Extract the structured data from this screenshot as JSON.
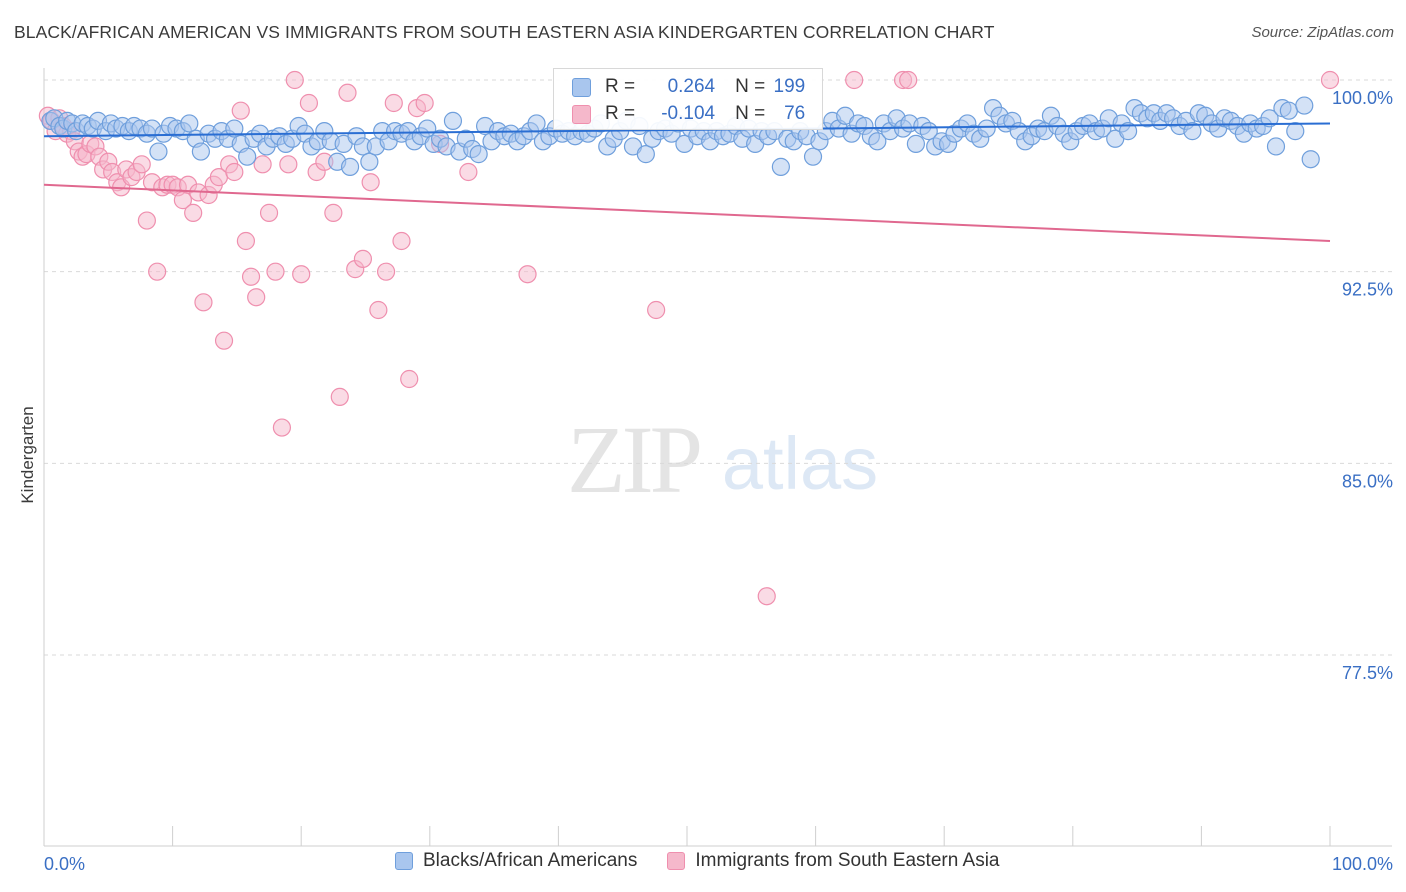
{
  "title": "BLACK/AFRICAN AMERICAN VS IMMIGRANTS FROM SOUTH EASTERN ASIA KINDERGARTEN CORRELATION CHART",
  "source": "Source: ZipAtlas.com",
  "watermark": {
    "zip": "ZIP",
    "atlas": "atlas"
  },
  "colors": {
    "blue_fill": "#a9c6ee",
    "blue_stroke": "#6f9fdc",
    "blue_line": "#2a6ed3",
    "pink_fill": "#f5b8cb",
    "pink_stroke": "#ef8fae",
    "pink_line": "#e0688f",
    "tick_label": "#3a6fc4",
    "grid": "#d9d9d9"
  },
  "stats": {
    "r_label": "R =",
    "n_label": "N =",
    "series1": {
      "r": "0.264",
      "n": "199"
    },
    "series2": {
      "r": "-0.104",
      "n": "76"
    }
  },
  "chart_data": {
    "type": "scatter",
    "title": "BLACK/AFRICAN AMERICAN VS IMMIGRANTS FROM SOUTH EASTERN ASIA KINDERGARTEN CORRELATION CHART",
    "xlabel": "",
    "ylabel": "Kindergarten",
    "xlim": [
      0,
      100
    ],
    "ylim": [
      70,
      101.5
    ],
    "x_tick_labels": [
      "0.0%",
      "100.0%"
    ],
    "y_ticks": [
      100,
      92.5,
      85,
      77.5
    ],
    "y_tick_labels": [
      "100.0%",
      "92.5%",
      "85.0%",
      "77.5%"
    ],
    "grid": true,
    "legend_position": "bottom",
    "series": [
      {
        "name": "Blacks/African Americans",
        "color": "#a9c6ee",
        "trend": {
          "x": [
            0,
            100
          ],
          "y": [
            97.8,
            98.3
          ]
        },
        "points": [
          [
            0.5,
            98.4
          ],
          [
            0.8,
            98.5
          ],
          [
            1.2,
            98.2
          ],
          [
            1.5,
            98.1
          ],
          [
            1.8,
            98.4
          ],
          [
            2.2,
            98.3
          ],
          [
            2.5,
            98.0
          ],
          [
            3.0,
            98.3
          ],
          [
            3.4,
            98.2
          ],
          [
            3.8,
            98.1
          ],
          [
            4.2,
            98.4
          ],
          [
            4.8,
            98.0
          ],
          [
            5.2,
            98.3
          ],
          [
            5.6,
            98.1
          ],
          [
            6.1,
            98.2
          ],
          [
            6.6,
            98.0
          ],
          [
            7.0,
            98.2
          ],
          [
            7.5,
            98.1
          ],
          [
            8.0,
            97.9
          ],
          [
            8.4,
            98.1
          ],
          [
            8.9,
            97.2
          ],
          [
            9.3,
            97.9
          ],
          [
            9.8,
            98.2
          ],
          [
            10.3,
            98.1
          ],
          [
            10.8,
            98.0
          ],
          [
            11.3,
            98.3
          ],
          [
            11.8,
            97.7
          ],
          [
            12.2,
            97.2
          ],
          [
            12.8,
            97.9
          ],
          [
            13.3,
            97.7
          ],
          [
            13.8,
            98.0
          ],
          [
            14.3,
            97.7
          ],
          [
            14.8,
            98.1
          ],
          [
            15.3,
            97.5
          ],
          [
            15.8,
            97.0
          ],
          [
            16.3,
            97.7
          ],
          [
            16.8,
            97.9
          ],
          [
            17.3,
            97.4
          ],
          [
            17.8,
            97.7
          ],
          [
            18.3,
            97.8
          ],
          [
            18.8,
            97.5
          ],
          [
            19.3,
            97.7
          ],
          [
            19.8,
            98.2
          ],
          [
            20.3,
            97.9
          ],
          [
            20.8,
            97.4
          ],
          [
            21.3,
            97.6
          ],
          [
            21.8,
            98.0
          ],
          [
            22.3,
            97.6
          ],
          [
            22.8,
            96.8
          ],
          [
            23.3,
            97.5
          ],
          [
            23.8,
            96.6
          ],
          [
            24.3,
            97.8
          ],
          [
            24.8,
            97.4
          ],
          [
            25.3,
            96.8
          ],
          [
            25.8,
            97.4
          ],
          [
            26.3,
            98.0
          ],
          [
            26.8,
            97.6
          ],
          [
            27.3,
            98.0
          ],
          [
            27.8,
            97.9
          ],
          [
            28.3,
            98.0
          ],
          [
            28.8,
            97.6
          ],
          [
            29.3,
            97.8
          ],
          [
            29.8,
            98.1
          ],
          [
            30.3,
            97.5
          ],
          [
            30.8,
            97.7
          ],
          [
            31.3,
            97.4
          ],
          [
            31.8,
            98.4
          ],
          [
            32.3,
            97.2
          ],
          [
            32.8,
            97.7
          ],
          [
            33.3,
            97.3
          ],
          [
            33.8,
            97.1
          ],
          [
            34.3,
            98.2
          ],
          [
            34.8,
            97.6
          ],
          [
            35.3,
            98.0
          ],
          [
            35.8,
            97.8
          ],
          [
            36.3,
            97.9
          ],
          [
            36.8,
            97.6
          ],
          [
            37.3,
            97.8
          ],
          [
            37.8,
            98.0
          ],
          [
            38.3,
            98.3
          ],
          [
            38.8,
            97.6
          ],
          [
            39.3,
            97.8
          ],
          [
            39.8,
            98.1
          ],
          [
            40.3,
            97.9
          ],
          [
            40.8,
            98.0
          ],
          [
            41.3,
            97.8
          ],
          [
            41.8,
            98.0
          ],
          [
            42.3,
            97.9
          ],
          [
            42.8,
            98.1
          ],
          [
            43.3,
            98.3
          ],
          [
            43.8,
            97.4
          ],
          [
            44.3,
            97.7
          ],
          [
            44.8,
            98.0
          ],
          [
            45.3,
            98.4
          ],
          [
            45.8,
            97.4
          ],
          [
            46.3,
            98.2
          ],
          [
            46.8,
            97.1
          ],
          [
            47.3,
            97.7
          ],
          [
            47.8,
            98.0
          ],
          [
            48.3,
            98.1
          ],
          [
            48.8,
            97.9
          ],
          [
            49.3,
            98.3
          ],
          [
            49.8,
            97.5
          ],
          [
            50.3,
            98.1
          ],
          [
            50.8,
            97.8
          ],
          [
            51.3,
            98.0
          ],
          [
            51.8,
            97.6
          ],
          [
            52.3,
            98.0
          ],
          [
            52.8,
            97.8
          ],
          [
            53.3,
            97.9
          ],
          [
            53.8,
            98.2
          ],
          [
            54.3,
            97.7
          ],
          [
            54.8,
            98.1
          ],
          [
            55.3,
            97.5
          ],
          [
            55.8,
            98.0
          ],
          [
            56.3,
            97.8
          ],
          [
            56.8,
            98.0
          ],
          [
            57.3,
            96.6
          ],
          [
            57.8,
            97.7
          ],
          [
            58.3,
            97.6
          ],
          [
            58.8,
            98.0
          ],
          [
            59.3,
            97.8
          ],
          [
            59.8,
            97.0
          ],
          [
            60.3,
            97.6
          ],
          [
            60.8,
            98.0
          ],
          [
            61.3,
            98.4
          ],
          [
            61.8,
            98.1
          ],
          [
            62.3,
            98.6
          ],
          [
            62.8,
            97.9
          ],
          [
            63.3,
            98.3
          ],
          [
            63.8,
            98.2
          ],
          [
            64.3,
            97.8
          ],
          [
            64.8,
            97.6
          ],
          [
            65.3,
            98.3
          ],
          [
            65.8,
            98.0
          ],
          [
            66.3,
            98.5
          ],
          [
            66.8,
            98.1
          ],
          [
            67.3,
            98.3
          ],
          [
            67.8,
            97.5
          ],
          [
            68.3,
            98.2
          ],
          [
            68.8,
            98.0
          ],
          [
            69.3,
            97.4
          ],
          [
            69.8,
            97.6
          ],
          [
            70.3,
            97.5
          ],
          [
            70.8,
            97.9
          ],
          [
            71.3,
            98.1
          ],
          [
            71.8,
            98.3
          ],
          [
            72.3,
            97.9
          ],
          [
            72.8,
            97.7
          ],
          [
            73.3,
            98.1
          ],
          [
            73.8,
            98.9
          ],
          [
            74.3,
            98.6
          ],
          [
            74.8,
            98.3
          ],
          [
            75.3,
            98.4
          ],
          [
            75.8,
            98.0
          ],
          [
            76.3,
            97.6
          ],
          [
            76.8,
            97.8
          ],
          [
            77.3,
            98.1
          ],
          [
            77.8,
            98.0
          ],
          [
            78.3,
            98.6
          ],
          [
            78.8,
            98.2
          ],
          [
            79.3,
            97.9
          ],
          [
            79.8,
            97.6
          ],
          [
            80.3,
            98.0
          ],
          [
            80.8,
            98.2
          ],
          [
            81.3,
            98.3
          ],
          [
            81.8,
            98.0
          ],
          [
            82.3,
            98.1
          ],
          [
            82.8,
            98.5
          ],
          [
            83.3,
            97.7
          ],
          [
            83.8,
            98.3
          ],
          [
            84.3,
            98.0
          ],
          [
            84.8,
            98.9
          ],
          [
            85.3,
            98.7
          ],
          [
            85.8,
            98.5
          ],
          [
            86.3,
            98.7
          ],
          [
            86.8,
            98.4
          ],
          [
            87.3,
            98.7
          ],
          [
            87.8,
            98.5
          ],
          [
            88.3,
            98.2
          ],
          [
            88.8,
            98.4
          ],
          [
            89.3,
            98.0
          ],
          [
            89.8,
            98.7
          ],
          [
            90.3,
            98.6
          ],
          [
            90.8,
            98.3
          ],
          [
            91.3,
            98.1
          ],
          [
            91.8,
            98.5
          ],
          [
            92.3,
            98.4
          ],
          [
            92.8,
            98.2
          ],
          [
            93.3,
            97.9
          ],
          [
            93.8,
            98.3
          ],
          [
            94.3,
            98.1
          ],
          [
            94.8,
            98.2
          ],
          [
            95.3,
            98.5
          ],
          [
            95.8,
            97.4
          ],
          [
            96.3,
            98.9
          ],
          [
            96.8,
            98.8
          ],
          [
            97.3,
            98.0
          ],
          [
            98.0,
            99.0
          ],
          [
            98.5,
            96.9
          ]
        ]
      },
      {
        "name": "Immigrants from South Eastern Asia",
        "color": "#f5b8cb",
        "trend": {
          "x": [
            0,
            100
          ],
          "y": [
            95.9,
            93.7
          ]
        },
        "points": [
          [
            0.3,
            98.6
          ],
          [
            0.6,
            98.4
          ],
          [
            0.9,
            98.0
          ],
          [
            1.2,
            98.5
          ],
          [
            1.5,
            98.2
          ],
          [
            1.8,
            97.9
          ],
          [
            2.1,
            98.0
          ],
          [
            2.4,
            97.6
          ],
          [
            2.7,
            97.2
          ],
          [
            3.0,
            97.0
          ],
          [
            3.3,
            97.1
          ],
          [
            3.6,
            97.5
          ],
          [
            4.0,
            97.4
          ],
          [
            4.3,
            97.0
          ],
          [
            4.6,
            96.5
          ],
          [
            5.0,
            96.8
          ],
          [
            5.3,
            96.4
          ],
          [
            5.7,
            96.0
          ],
          [
            6.0,
            95.8
          ],
          [
            6.4,
            96.5
          ],
          [
            6.8,
            96.2
          ],
          [
            7.2,
            96.4
          ],
          [
            7.6,
            96.7
          ],
          [
            8.0,
            94.5
          ],
          [
            8.4,
            96.0
          ],
          [
            8.8,
            92.5
          ],
          [
            9.2,
            95.8
          ],
          [
            9.6,
            95.9
          ],
          [
            10.0,
            95.9
          ],
          [
            10.4,
            95.8
          ],
          [
            10.8,
            95.3
          ],
          [
            11.2,
            95.9
          ],
          [
            11.6,
            94.8
          ],
          [
            12.0,
            95.6
          ],
          [
            12.4,
            91.3
          ],
          [
            12.8,
            95.5
          ],
          [
            13.2,
            95.9
          ],
          [
            13.6,
            96.2
          ],
          [
            14.0,
            89.8
          ],
          [
            14.4,
            96.7
          ],
          [
            14.8,
            96.4
          ],
          [
            15.3,
            98.8
          ],
          [
            15.7,
            93.7
          ],
          [
            16.1,
            92.3
          ],
          [
            16.5,
            91.5
          ],
          [
            17.0,
            96.7
          ],
          [
            17.5,
            94.8
          ],
          [
            18.0,
            92.5
          ],
          [
            18.5,
            86.4
          ],
          [
            19.0,
            96.7
          ],
          [
            19.5,
            100.0
          ],
          [
            20.0,
            92.4
          ],
          [
            20.6,
            99.1
          ],
          [
            21.2,
            96.4
          ],
          [
            21.8,
            96.8
          ],
          [
            22.5,
            94.8
          ],
          [
            23.0,
            87.6
          ],
          [
            23.6,
            99.5
          ],
          [
            24.2,
            92.6
          ],
          [
            24.8,
            93.0
          ],
          [
            25.4,
            96.0
          ],
          [
            26.0,
            91.0
          ],
          [
            26.6,
            92.5
          ],
          [
            27.2,
            99.1
          ],
          [
            27.8,
            93.7
          ],
          [
            28.4,
            88.3
          ],
          [
            29.0,
            98.9
          ],
          [
            29.6,
            99.1
          ],
          [
            30.8,
            97.5
          ],
          [
            33.0,
            96.4
          ],
          [
            37.6,
            92.4
          ],
          [
            47.6,
            91.0
          ],
          [
            56.2,
            79.8
          ],
          [
            63.0,
            100.0
          ],
          [
            66.8,
            100.0
          ],
          [
            67.2,
            100.0
          ],
          [
            100.0,
            100.0
          ]
        ]
      }
    ]
  },
  "legend": {
    "series1_label": "Blacks/African Americans",
    "series2_label": "Immigrants from South Eastern Asia"
  }
}
